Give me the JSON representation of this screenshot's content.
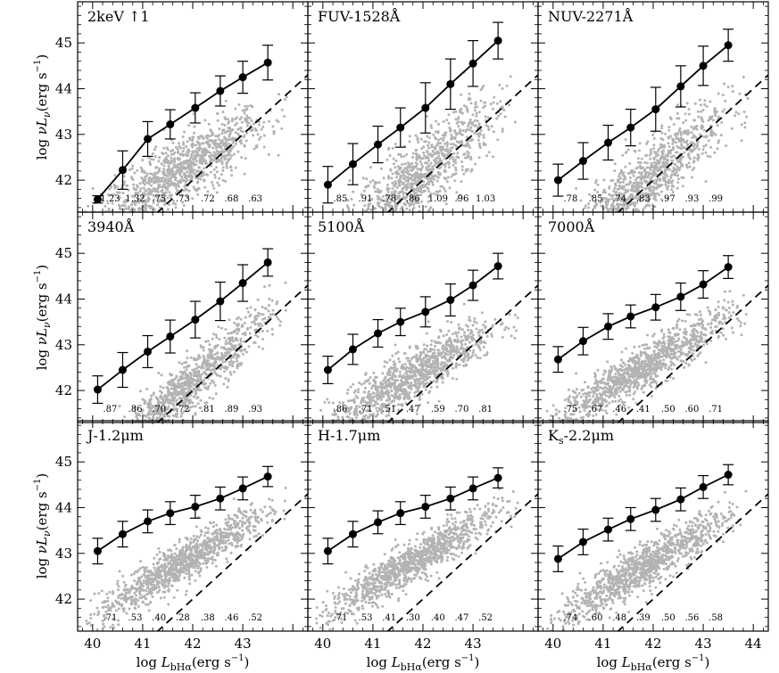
{
  "chart_data": {
    "type": "scatter",
    "layout": "3x3 grid, shared axes",
    "xlabel": "log L_bHα (erg s⁻¹)",
    "xlabel_parts": {
      "prefix": "log ",
      "symbol": "L",
      "subscript": "bHα",
      "unit": "(erg s",
      "exponent": "−1",
      "close": ")"
    },
    "ylabel": "log νLν (erg s⁻¹)",
    "ylabel_parts": {
      "prefix": "log ",
      "symbol": "νL",
      "subscript": "ν",
      "unit": "(erg s",
      "exponent": "−1",
      "close": ")"
    },
    "xlim": [
      39.7,
      44.3
    ],
    "ylim": [
      41.3,
      45.9
    ],
    "xticks": [
      40,
      41,
      42,
      43,
      44
    ],
    "yticks": [
      42,
      43,
      44,
      45
    ],
    "xtick_labels": [
      "40",
      "41",
      "42",
      "43",
      "44"
    ],
    "ytick_labels": [
      "42",
      "43",
      "44",
      "45"
    ],
    "bin_centers": [
      40.1,
      40.6,
      41.1,
      41.55,
      42.05,
      42.55,
      43.0,
      43.5
    ],
    "reference_line": {
      "style": "dashed",
      "relation": "y = x",
      "description": "1:1 line"
    },
    "panels": [
      {
        "title": "2keV ↑1",
        "binned_mean": [
          41.58,
          42.22,
          42.9,
          43.22,
          43.58,
          43.95,
          44.25,
          44.57
        ],
        "error_bars": [
          0.08,
          0.42,
          0.38,
          0.32,
          0.33,
          0.33,
          0.35,
          0.38
        ],
        "sigma_labels": [
          "1.23",
          "1.32",
          ".75",
          ".73",
          ".72",
          ".68",
          ".63"
        ],
        "scatter_offset": 0.4,
        "scatter_spread": 0.35
      },
      {
        "title": "FUV-1528Å",
        "binned_mean": [
          41.9,
          42.35,
          42.78,
          43.15,
          43.58,
          44.1,
          44.55,
          45.05
        ],
        "error_bars": [
          0.4,
          0.45,
          0.4,
          0.43,
          0.55,
          0.55,
          0.5,
          0.4
        ],
        "sigma_labels": [
          ".85",
          ".91",
          ".78",
          ".86",
          "1.09",
          ".96",
          "1.03"
        ],
        "scatter_offset": 0.1,
        "scatter_spread": 0.45
      },
      {
        "title": "NUV-2271Å",
        "binned_mean": [
          42.0,
          42.42,
          42.82,
          43.15,
          43.55,
          44.05,
          44.5,
          44.95
        ],
        "error_bars": [
          0.35,
          0.4,
          0.38,
          0.4,
          0.48,
          0.45,
          0.43,
          0.35
        ],
        "sigma_labels": [
          ".78",
          ".85",
          ".74",
          ".83",
          ".97",
          ".93",
          ".99"
        ],
        "scatter_offset": 0.1,
        "scatter_spread": 0.4
      },
      {
        "title": "3940Å",
        "binned_mean": [
          42.02,
          42.45,
          42.85,
          43.18,
          43.55,
          43.95,
          44.35,
          44.8
        ],
        "error_bars": [
          0.3,
          0.38,
          0.35,
          0.36,
          0.4,
          0.42,
          0.4,
          0.3
        ],
        "sigma_labels": [
          ".87",
          ".86",
          ".70",
          ".72",
          ".81",
          ".89",
          ".93"
        ],
        "scatter_offset": 0.2,
        "scatter_spread": 0.3
      },
      {
        "title": "5100Å",
        "binned_mean": [
          42.45,
          42.9,
          43.25,
          43.5,
          43.72,
          43.98,
          44.3,
          44.72
        ],
        "error_bars": [
          0.3,
          0.33,
          0.3,
          0.3,
          0.33,
          0.35,
          0.33,
          0.28
        ],
        "sigma_labels": [
          ".86",
          ".71",
          ".51",
          ".47",
          ".59",
          ".70",
          ".81"
        ],
        "scatter_offset": 0.5,
        "scatter_spread": 0.28
      },
      {
        "title": "7000Å",
        "binned_mean": [
          42.68,
          43.08,
          43.4,
          43.62,
          43.82,
          44.05,
          44.32,
          44.7
        ],
        "error_bars": [
          0.28,
          0.3,
          0.28,
          0.25,
          0.28,
          0.3,
          0.3,
          0.25
        ],
        "sigma_labels": [
          ".75",
          ".67",
          ".46",
          ".41",
          ".50",
          ".60",
          ".71"
        ],
        "scatter_offset": 0.7,
        "scatter_spread": 0.25
      },
      {
        "title": "J-1.2μm",
        "binned_mean": [
          43.05,
          43.42,
          43.7,
          43.88,
          44.02,
          44.2,
          44.42,
          44.68
        ],
        "error_bars": [
          0.28,
          0.28,
          0.25,
          0.25,
          0.25,
          0.25,
          0.25,
          0.22
        ],
        "sigma_labels": [
          ".71",
          ".53",
          ".40",
          ".28",
          ".38",
          ".46",
          ".52"
        ],
        "scatter_offset": 1.0,
        "scatter_spread": 0.22
      },
      {
        "title": "H-1.7μm",
        "binned_mean": [
          43.05,
          43.42,
          43.68,
          43.88,
          44.02,
          44.2,
          44.42,
          44.65
        ],
        "error_bars": [
          0.28,
          0.28,
          0.25,
          0.25,
          0.25,
          0.25,
          0.25,
          0.22
        ],
        "sigma_labels": [
          ".71",
          ".53",
          ".41",
          ".30",
          ".40",
          ".47",
          ".52"
        ],
        "scatter_offset": 1.0,
        "scatter_spread": 0.22
      },
      {
        "title": "Ks-2.2μm",
        "title_parts": {
          "main": "K",
          "subscript": "s",
          "rest": "-2.2μm"
        },
        "binned_mean": [
          42.88,
          43.25,
          43.52,
          43.75,
          43.95,
          44.18,
          44.45,
          44.72
        ],
        "error_bars": [
          0.28,
          0.28,
          0.25,
          0.25,
          0.25,
          0.25,
          0.25,
          0.22
        ],
        "sigma_labels": [
          ".74",
          ".60",
          ".48",
          ".39",
          ".50",
          ".56",
          ".58"
        ],
        "scatter_offset": 0.9,
        "scatter_spread": 0.24
      }
    ]
  },
  "colors": {
    "scatter": "#b3b3b3",
    "mean": "#000000",
    "axes": "#000000"
  }
}
